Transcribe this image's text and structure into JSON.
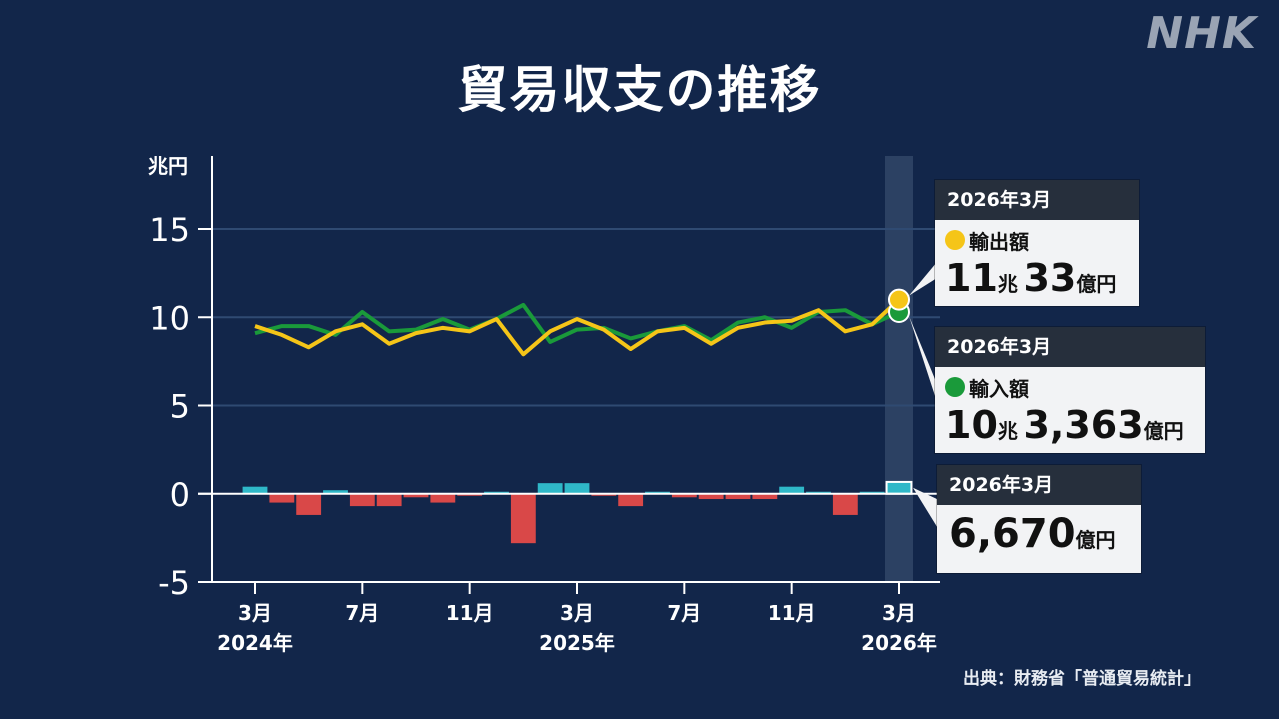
{
  "logo": "NHK",
  "title": "貿易収支の推移",
  "source": "出典：財務省「普通貿易統計」",
  "colors": {
    "export": "#f5c518",
    "import": "#1a9a3a",
    "surplus": "#2fb8c8",
    "deficit": "#d94848"
  },
  "callouts": {
    "export": {
      "date": "2026年3月",
      "label": "輸出額",
      "amount1": "11",
      "unit1": "兆",
      "amount2": "33",
      "unit2": "億円"
    },
    "import": {
      "date": "2026年3月",
      "label": "輸入額",
      "amount1": "10",
      "unit1": "兆",
      "amount2": "3,363",
      "unit2": "億円"
    },
    "balance": {
      "date": "2026年3月",
      "amount": "6,670",
      "unit": "億円"
    }
  },
  "chart_data": {
    "type": "line",
    "ylabel": "兆円",
    "ylim": [
      -5,
      15
    ],
    "yticks": [
      -5,
      0,
      5,
      10,
      15
    ],
    "grid": true,
    "x": [
      "2024-03",
      "2024-04",
      "2024-05",
      "2024-06",
      "2024-07",
      "2024-08",
      "2024-09",
      "2024-10",
      "2024-11",
      "2024-12",
      "2025-01",
      "2025-02",
      "2025-03",
      "2025-04",
      "2025-05",
      "2025-06",
      "2025-07",
      "2025-08",
      "2025-09",
      "2025-10",
      "2025-11",
      "2025-12",
      "2026-01",
      "2026-02",
      "2026-03"
    ],
    "xtick_labels": [
      {
        "x": "2024-03",
        "month": "3月",
        "year": "2024年"
      },
      {
        "x": "2024-07",
        "month": "7月",
        "year": ""
      },
      {
        "x": "2024-11",
        "month": "11月",
        "year": ""
      },
      {
        "x": "2025-03",
        "month": "3月",
        "year": "2025年"
      },
      {
        "x": "2025-07",
        "month": "7月",
        "year": ""
      },
      {
        "x": "2025-11",
        "month": "11月",
        "year": ""
      },
      {
        "x": "2026-03",
        "month": "3月",
        "year": "2026年"
      }
    ],
    "series": [
      {
        "name": "輸出額",
        "kind": "line",
        "color": "#f5c518",
        "values": [
          9.5,
          9.0,
          8.3,
          9.2,
          9.6,
          8.5,
          9.1,
          9.4,
          9.2,
          9.9,
          7.9,
          9.2,
          9.9,
          9.3,
          8.2,
          9.2,
          9.4,
          8.5,
          9.4,
          9.7,
          9.8,
          10.4,
          9.2,
          9.6,
          11.0
        ]
      },
      {
        "name": "輸入額",
        "kind": "line",
        "color": "#1a9a3a",
        "values": [
          9.1,
          9.5,
          9.5,
          9.0,
          10.3,
          9.2,
          9.3,
          9.9,
          9.3,
          9.9,
          10.7,
          8.6,
          9.3,
          9.4,
          8.8,
          9.2,
          9.5,
          8.7,
          9.7,
          10.0,
          9.4,
          10.3,
          10.4,
          9.6,
          10.3
        ]
      },
      {
        "name": "貿易収支",
        "kind": "bar",
        "values": [
          0.4,
          -0.5,
          -1.2,
          0.2,
          -0.7,
          -0.7,
          -0.2,
          -0.5,
          -0.1,
          0.0,
          -2.8,
          0.6,
          0.6,
          -0.1,
          -0.7,
          0.1,
          -0.2,
          -0.3,
          -0.3,
          -0.3,
          0.4,
          0.1,
          -1.2,
          0.0,
          0.67
        ]
      }
    ]
  }
}
